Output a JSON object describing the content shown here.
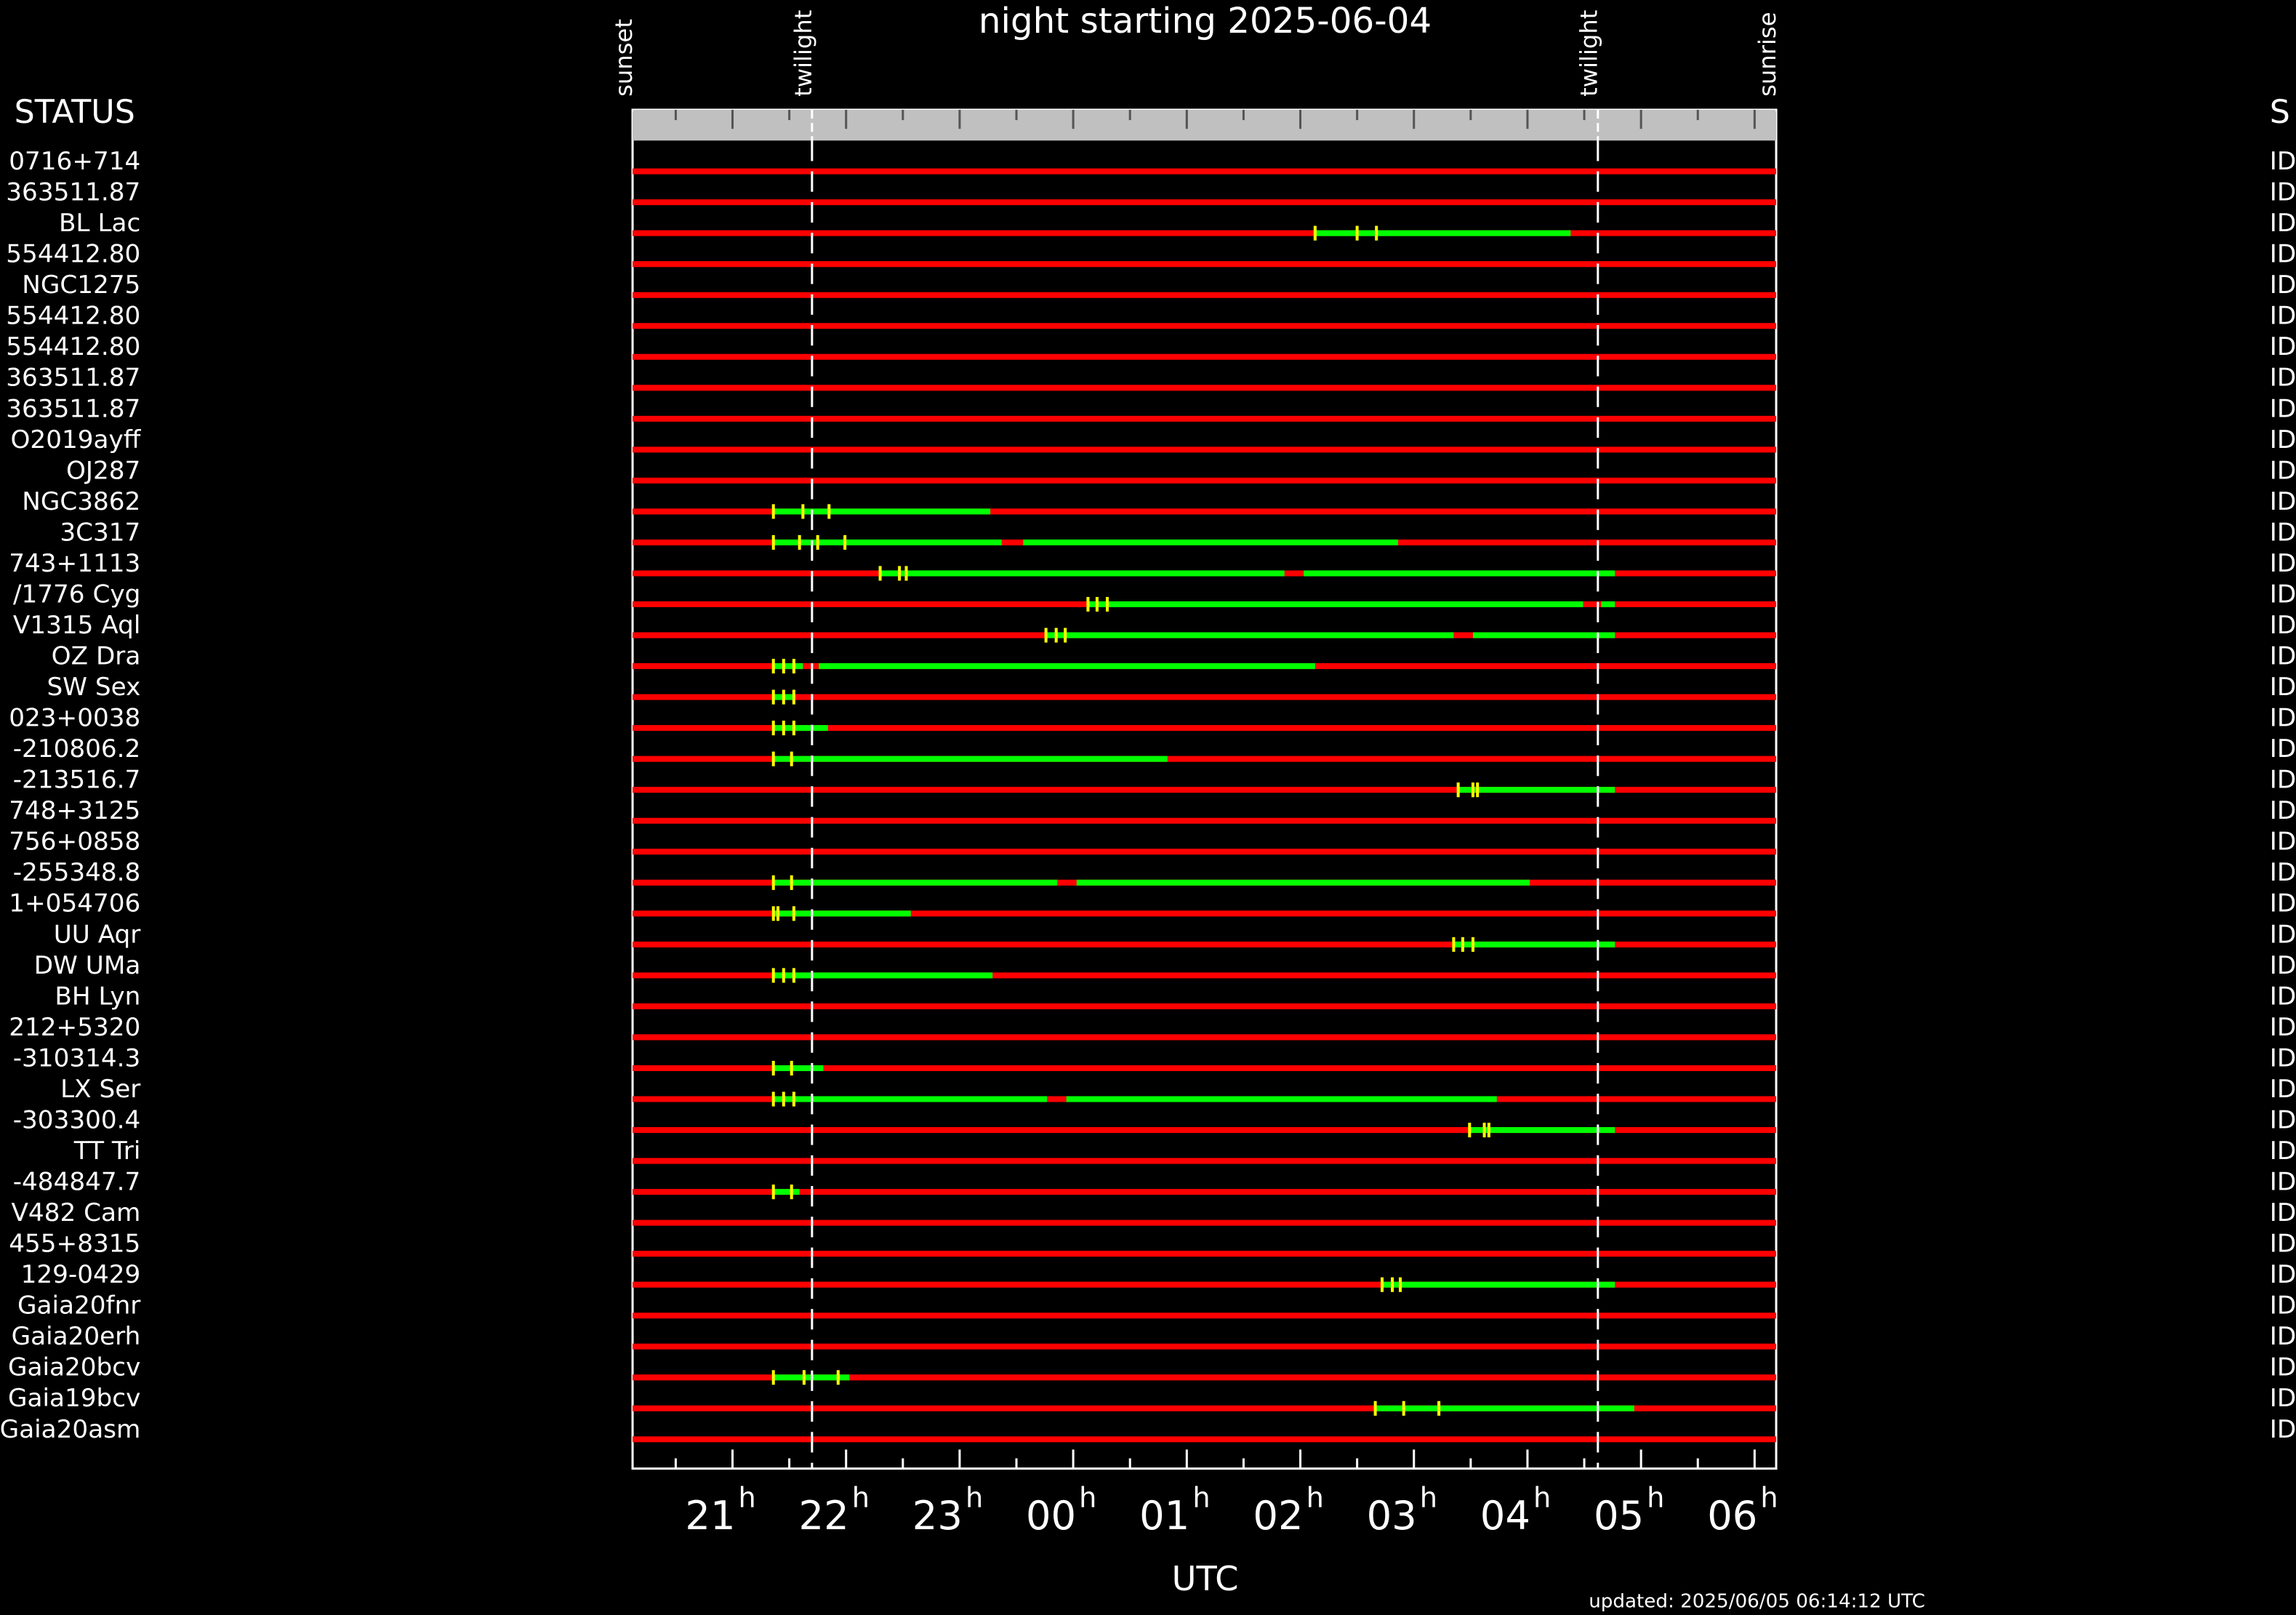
{
  "chart_data": {
    "type": "timeline",
    "title": "night starting 2025-06-04",
    "x_label": "UTC",
    "updated": "updated: 2025/06/05 06:14:12 UTC",
    "left_header": "STATUS",
    "right_header": "S",
    "xlim": [
      20.12,
      30.19
    ],
    "xticks": [
      21,
      22,
      23,
      {
        "value": 24,
        "label": "00"
      },
      {
        "value": 25,
        "label": "01"
      },
      {
        "value": 26,
        "label": "02"
      },
      {
        "value": 27,
        "label": "03"
      },
      {
        "value": 28,
        "label": "04"
      },
      {
        "value": 29,
        "label": "05"
      },
      {
        "value": 30,
        "label": "06"
      }
    ],
    "xtick_suffix": "h",
    "xminor_ticks": [
      20.5,
      21.5,
      22.5,
      23.5,
      24.5,
      25.5,
      26.5,
      27.5,
      28.5,
      29.5
    ],
    "events": [
      {
        "label": "sunset",
        "time": 20.12
      },
      {
        "label": "twilight",
        "time": 21.7
      },
      {
        "label": "twilight",
        "time": 28.62
      },
      {
        "label": "sunrise",
        "time": 30.19
      }
    ],
    "colors": {
      "unavailable": "#ff0000",
      "available": "#00ff00",
      "marker": "#ffff00",
      "band": "#c0c0c0"
    },
    "rows": [
      {
        "name": "0716+714",
        "status": "ID",
        "segments": [],
        "markers": []
      },
      {
        "name": "363511.87",
        "status": "ID",
        "segments": [],
        "markers": []
      },
      {
        "name": "BL Lac",
        "status": "ID",
        "segments": [
          [
            26.13,
            28.38
          ]
        ],
        "markers": [
          26.13,
          26.5,
          26.67
        ]
      },
      {
        "name": "554412.80",
        "status": "ID",
        "segments": [],
        "markers": []
      },
      {
        "name": "NGC1275",
        "status": "ID",
        "segments": [],
        "markers": []
      },
      {
        "name": "554412.80",
        "status": "ID",
        "segments": [],
        "markers": []
      },
      {
        "name": "554412.80",
        "status": "ID",
        "segments": [],
        "markers": []
      },
      {
        "name": "363511.87",
        "status": "ID",
        "segments": [],
        "markers": []
      },
      {
        "name": "363511.87",
        "status": "ID",
        "segments": [],
        "markers": []
      },
      {
        "name": "O2019ayff",
        "status": "ID",
        "segments": [],
        "markers": []
      },
      {
        "name": "OJ287",
        "status": "ID",
        "segments": [],
        "markers": []
      },
      {
        "name": "NGC3862",
        "status": "ID",
        "segments": [
          [
            21.36,
            23.27
          ]
        ],
        "markers": [
          21.36,
          21.62,
          21.85
        ]
      },
      {
        "name": "3C317",
        "status": "ID",
        "segments": [
          [
            21.36,
            23.37
          ],
          [
            23.56,
            26.86
          ]
        ],
        "markers": [
          21.36,
          21.59,
          21.75,
          21.99
        ]
      },
      {
        "name": "743+1113",
        "status": "ID",
        "segments": [
          [
            22.3,
            25.86
          ],
          [
            26.03,
            28.77
          ]
        ],
        "markers": [
          22.3,
          22.47,
          22.53
        ]
      },
      {
        "name": "/1776 Cyg",
        "status": "ID",
        "segments": [
          [
            24.13,
            28.49
          ],
          [
            28.65,
            28.77
          ]
        ],
        "markers": [
          24.13,
          24.21,
          24.3
        ]
      },
      {
        "name": "V1315 Aql",
        "status": "ID",
        "segments": [
          [
            23.76,
            27.35
          ],
          [
            27.52,
            28.77
          ]
        ],
        "markers": [
          23.76,
          23.85,
          23.93
        ]
      },
      {
        "name": "OZ Dra",
        "status": "ID",
        "segments": [
          [
            21.36,
            21.62
          ],
          [
            21.76,
            26.13
          ]
        ],
        "markers": [
          21.36,
          21.45,
          21.54
        ]
      },
      {
        "name": "SW Sex",
        "status": "ID",
        "segments": [
          [
            21.36,
            21.54
          ]
        ],
        "markers": [
          21.36,
          21.45,
          21.54
        ]
      },
      {
        "name": "023+0038",
        "status": "ID",
        "segments": [
          [
            21.36,
            21.84
          ]
        ],
        "markers": [
          21.36,
          21.45,
          21.54
        ]
      },
      {
        "name": "-210806.2",
        "status": "ID",
        "segments": [
          [
            21.36,
            24.83
          ]
        ],
        "markers": [
          21.36,
          21.52
        ]
      },
      {
        "name": "-213516.7",
        "status": "ID",
        "segments": [
          [
            27.39,
            28.77
          ]
        ],
        "markers": [
          27.39,
          27.52,
          27.56
        ]
      },
      {
        "name": "748+3125",
        "status": "ID",
        "segments": [],
        "markers": []
      },
      {
        "name": "756+0858",
        "status": "ID",
        "segments": [],
        "markers": []
      },
      {
        "name": "-255348.8",
        "status": "ID",
        "segments": [
          [
            21.36,
            23.86
          ],
          [
            24.03,
            28.02
          ]
        ],
        "markers": [
          21.36,
          21.52
        ]
      },
      {
        "name": "1+054706",
        "status": "ID",
        "segments": [
          [
            21.36,
            22.57
          ]
        ],
        "markers": [
          21.36,
          21.4,
          21.54
        ]
      },
      {
        "name": "UU Aqr",
        "status": "ID",
        "segments": [
          [
            27.35,
            28.77
          ]
        ],
        "markers": [
          27.35,
          27.43,
          27.52
        ]
      },
      {
        "name": "DW UMa",
        "status": "ID",
        "segments": [
          [
            21.36,
            23.29
          ]
        ],
        "markers": [
          21.36,
          21.45,
          21.54
        ]
      },
      {
        "name": "BH Lyn",
        "status": "ID",
        "segments": [],
        "markers": []
      },
      {
        "name": "212+5320",
        "status": "ID",
        "segments": [],
        "markers": []
      },
      {
        "name": "-310314.3",
        "status": "ID",
        "segments": [
          [
            21.36,
            21.8
          ]
        ],
        "markers": [
          21.36,
          21.52
        ]
      },
      {
        "name": "LX Ser",
        "status": "ID",
        "segments": [
          [
            21.36,
            23.77
          ],
          [
            23.94,
            27.73
          ]
        ],
        "markers": [
          21.36,
          21.45,
          21.54
        ]
      },
      {
        "name": "-303300.4",
        "status": "ID",
        "segments": [
          [
            27.49,
            28.77
          ]
        ],
        "markers": [
          27.49,
          27.62,
          27.66
        ]
      },
      {
        "name": "TT Tri",
        "status": "ID",
        "segments": [],
        "markers": []
      },
      {
        "name": "-484847.7",
        "status": "ID",
        "segments": [
          [
            21.36,
            21.59
          ]
        ],
        "markers": [
          21.36,
          21.52
        ]
      },
      {
        "name": "V482 Cam",
        "status": "ID",
        "segments": [],
        "markers": []
      },
      {
        "name": "455+8315",
        "status": "ID",
        "segments": [],
        "markers": []
      },
      {
        "name": "129-0429",
        "status": "ID",
        "segments": [
          [
            26.72,
            28.77
          ]
        ],
        "markers": [
          26.72,
          26.81,
          26.88
        ]
      },
      {
        "name": "Gaia20fnr",
        "status": "ID",
        "segments": [],
        "markers": []
      },
      {
        "name": "Gaia20erh",
        "status": "ID",
        "segments": [],
        "markers": []
      },
      {
        "name": "Gaia20bcv",
        "status": "ID",
        "segments": [
          [
            21.36,
            22.03
          ]
        ],
        "markers": [
          21.36,
          21.63,
          21.93
        ]
      },
      {
        "name": "Gaia19bcv",
        "status": "ID",
        "segments": [
          [
            26.66,
            28.94
          ]
        ],
        "markers": [
          26.66,
          26.91,
          27.22
        ]
      },
      {
        "name": "Gaia20asm",
        "status": "ID",
        "segments": [],
        "markers": []
      }
    ]
  }
}
